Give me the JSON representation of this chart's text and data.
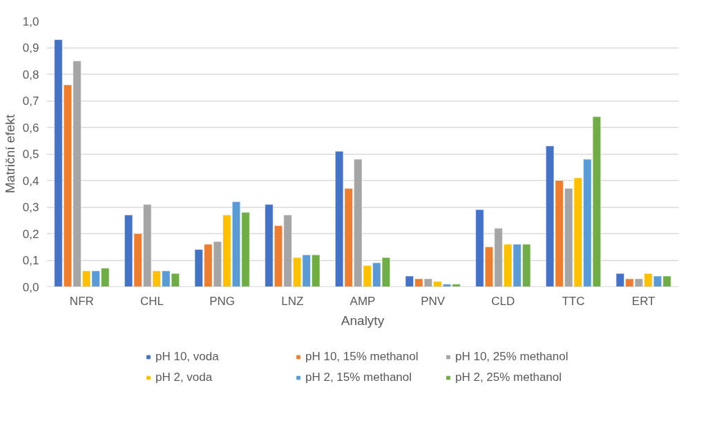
{
  "chart_data": {
    "type": "bar",
    "xlabel": "Analyty",
    "ylabel": "Matriční efekt",
    "categories": [
      "NFR",
      "CHL",
      "PNG",
      "LNZ",
      "AMP",
      "PNV",
      "CLD",
      "TTC",
      "ERT"
    ],
    "series": [
      {
        "name": "pH 10, voda",
        "color": "#4472c4",
        "values": [
          0.93,
          0.27,
          0.14,
          0.31,
          0.51,
          0.04,
          0.29,
          0.53,
          0.05
        ]
      },
      {
        "name": "pH 10, 15% methanol",
        "color": "#ed7d31",
        "values": [
          0.76,
          0.2,
          0.16,
          0.23,
          0.37,
          0.03,
          0.15,
          0.4,
          0.03
        ]
      },
      {
        "name": "pH 10, 25% methanol",
        "color": "#a5a5a5",
        "values": [
          0.85,
          0.31,
          0.17,
          0.27,
          0.48,
          0.03,
          0.22,
          0.37,
          0.03
        ]
      },
      {
        "name": "pH 2, voda",
        "color": "#ffc000",
        "values": [
          0.06,
          0.06,
          0.27,
          0.11,
          0.08,
          0.02,
          0.16,
          0.41,
          0.05
        ]
      },
      {
        "name": "pH 2, 15% methanol",
        "color": "#5b9bd5",
        "values": [
          0.06,
          0.06,
          0.32,
          0.12,
          0.09,
          0.01,
          0.16,
          0.48,
          0.04
        ]
      },
      {
        "name": "pH 2, 25% methanol",
        "color": "#70ad47",
        "values": [
          0.07,
          0.05,
          0.28,
          0.12,
          0.11,
          0.01,
          0.16,
          0.64,
          0.04
        ]
      }
    ],
    "ylim": [
      0,
      1
    ],
    "yticks": [
      {
        "value": 0,
        "label": "0,0"
      },
      {
        "value": 0.1,
        "label": "0,1"
      },
      {
        "value": 0.2,
        "label": "0,2"
      },
      {
        "value": 0.3,
        "label": "0,3"
      },
      {
        "value": 0.4,
        "label": "0,4"
      },
      {
        "value": 0.5,
        "label": "0,5"
      },
      {
        "value": 0.6,
        "label": "0,6"
      },
      {
        "value": 0.7,
        "label": "0,7"
      },
      {
        "value": 0.8,
        "label": "0,8"
      },
      {
        "value": 0.9,
        "label": "0,9"
      },
      {
        "value": 1,
        "label": "1,0"
      }
    ],
    "grid": "y",
    "legend": "bottom"
  }
}
